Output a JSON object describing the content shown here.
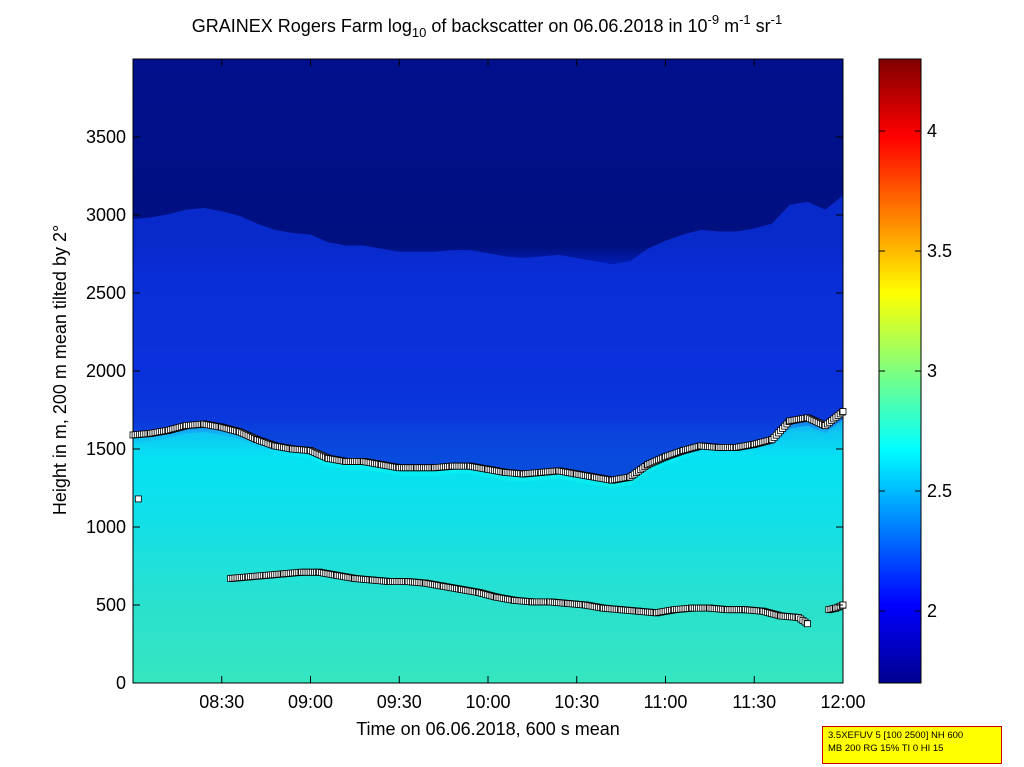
{
  "chart_data": {
    "type": "heatmap",
    "title_prefix": "GRAINEX Rogers Farm log",
    "title_sub": "10",
    "title_mid": " of backscatter on 06.06.2018 in 10",
    "title_exp1": "-9",
    "title_unit1": " m",
    "title_exp2": "-1",
    "title_unit2": " sr",
    "title_exp3": "-1",
    "xlabel": "Time on 06.06.2018, 600 s mean",
    "ylabel": "Height in m, 200 m mean tilted by 2°",
    "x_ticks": [
      "08:30",
      "09:00",
      "09:30",
      "10:00",
      "10:30",
      "11:00",
      "11:30",
      "12:00"
    ],
    "x_tick_hours": [
      8.5,
      9.0,
      9.5,
      10.0,
      10.5,
      11.0,
      11.5,
      12.0
    ],
    "xlim_hours": [
      8.0,
      12.0
    ],
    "y_ticks": [
      "0",
      "500",
      "1000",
      "1500",
      "2000",
      "2500",
      "3000",
      "3500"
    ],
    "y_tick_values": [
      0,
      500,
      1000,
      1500,
      2000,
      2500,
      3000,
      3500
    ],
    "ylim": [
      0,
      4000
    ],
    "colorbar": {
      "range": [
        1.7,
        4.3
      ],
      "ticks": [
        "2",
        "2.5",
        "3",
        "3.5",
        "4"
      ],
      "tick_values": [
        2,
        2.5,
        3,
        3.5,
        4
      ],
      "colormap": "jet"
    },
    "upper_layer_series": {
      "name": "",
      "marker": "square",
      "hours": [
        8.0,
        8.1,
        8.2,
        8.3,
        8.4,
        8.5,
        8.6,
        8.7,
        8.8,
        8.9,
        9.0,
        9.1,
        9.2,
        9.3,
        9.4,
        9.5,
        9.6,
        9.7,
        9.8,
        9.9,
        10.0,
        10.1,
        10.2,
        10.3,
        10.4,
        10.5,
        10.6,
        10.7,
        10.8,
        10.9,
        11.0,
        11.1,
        11.2,
        11.3,
        11.4,
        11.5,
        11.6,
        11.7,
        11.8,
        11.9,
        12.0
      ],
      "heights_m": [
        1590,
        1600,
        1620,
        1650,
        1660,
        1640,
        1610,
        1560,
        1520,
        1500,
        1490,
        1440,
        1420,
        1420,
        1400,
        1380,
        1380,
        1380,
        1390,
        1390,
        1370,
        1350,
        1340,
        1350,
        1360,
        1340,
        1320,
        1300,
        1320,
        1400,
        1450,
        1490,
        1520,
        1510,
        1510,
        1530,
        1560,
        1680,
        1700,
        1650,
        1740
      ]
    },
    "upper_outlier": {
      "hour": 8.03,
      "height_m": 1180
    },
    "lower_layer_series": {
      "name": "",
      "marker": "square",
      "hours": [
        8.55,
        8.65,
        8.75,
        8.85,
        8.95,
        9.05,
        9.15,
        9.25,
        9.35,
        9.45,
        9.55,
        9.65,
        9.75,
        9.85,
        9.95,
        10.05,
        10.15,
        10.25,
        10.35,
        10.45,
        10.55,
        10.65,
        10.75,
        10.85,
        10.95,
        11.05,
        11.15,
        11.25,
        11.35,
        11.45,
        11.55,
        11.65,
        11.75,
        11.8
      ],
      "heights_m": [
        670,
        680,
        690,
        700,
        710,
        710,
        690,
        670,
        660,
        650,
        650,
        640,
        620,
        600,
        580,
        550,
        530,
        520,
        520,
        510,
        500,
        480,
        470,
        460,
        450,
        470,
        480,
        480,
        470,
        470,
        460,
        430,
        420,
        380
      ]
    },
    "lower_tail_series": {
      "hours": [
        11.92,
        11.96,
        12.0
      ],
      "heights_m": [
        470,
        480,
        500
      ]
    }
  },
  "info_box": {
    "line1": "3.5XEFUV 5 [100 2500] NH 600",
    "line2": "MB 200 RG 15% TI 0 HI 15"
  }
}
